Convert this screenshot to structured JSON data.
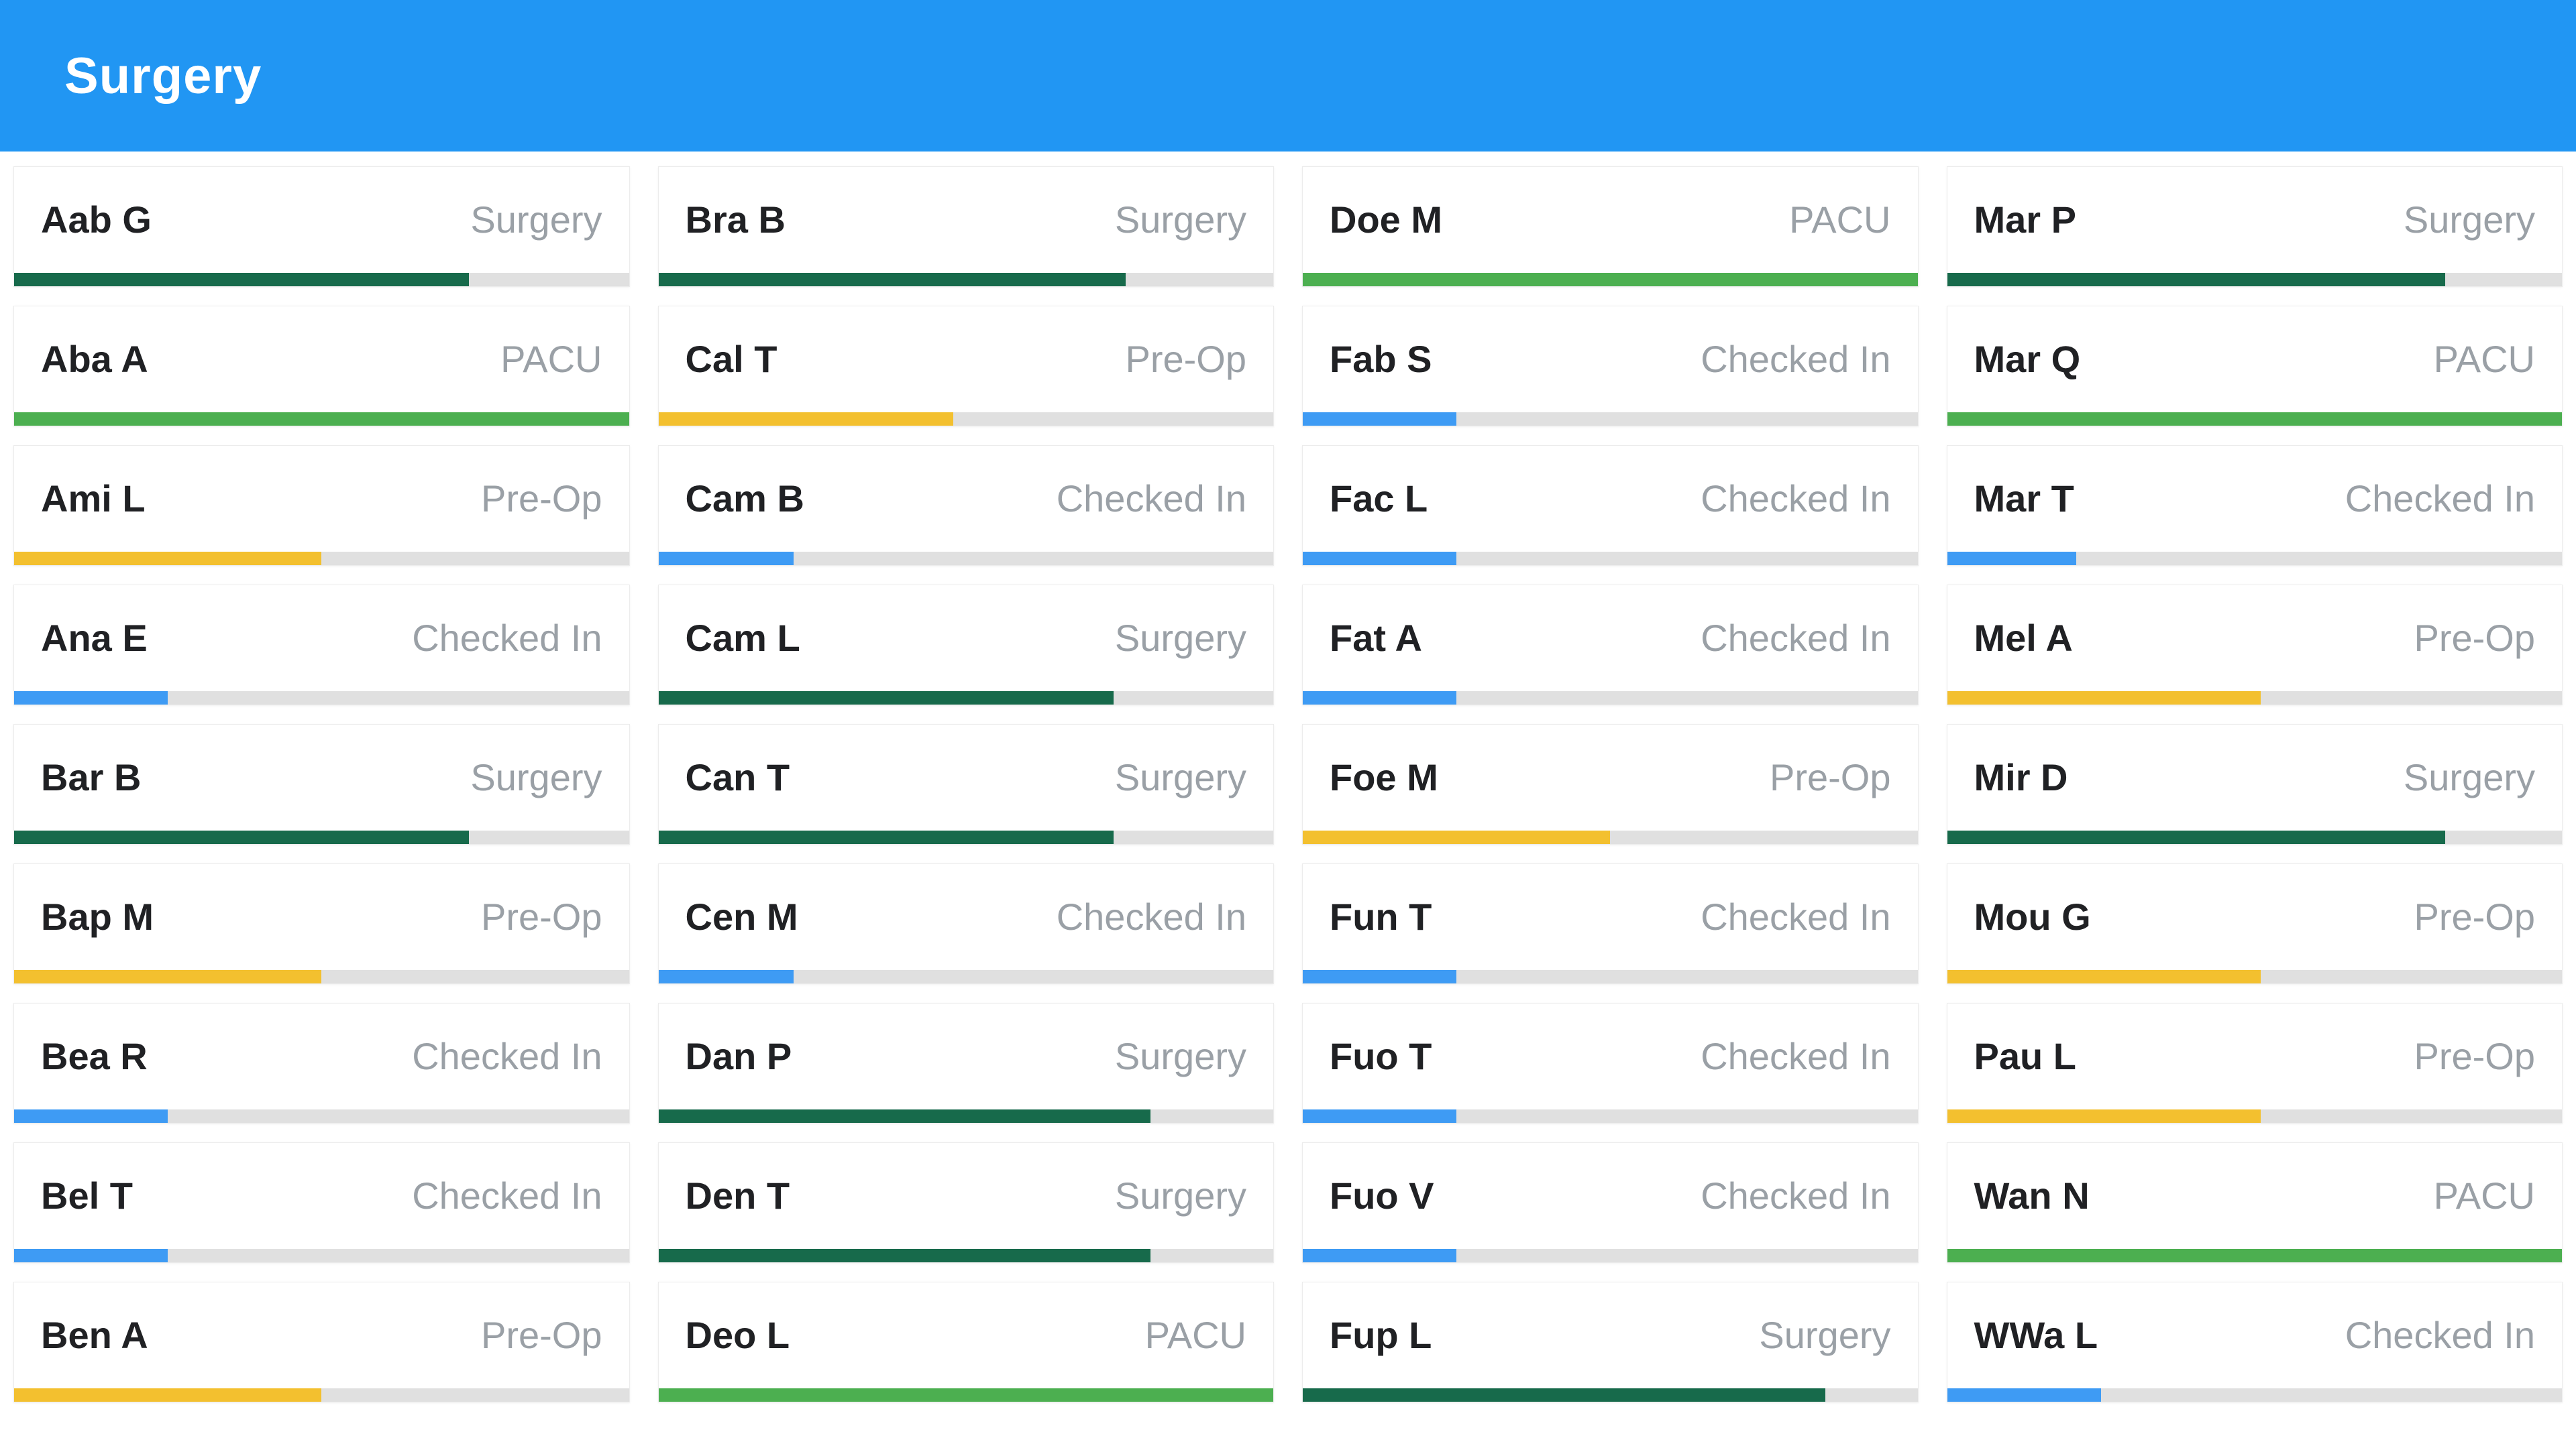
{
  "header": {
    "title": "Surgery",
    "background": "#2196f3"
  },
  "statuses": {
    "Surgery": {
      "color": "#176a4b"
    },
    "PACU": {
      "color": "#4caf50"
    },
    "Pre-Op": {
      "color": "#f3c02f"
    },
    "Checked In": {
      "color": "#3e9bf4"
    }
  },
  "columns": [
    [
      {
        "name": "Aab G",
        "status": "Surgery",
        "progress": 74
      },
      {
        "name": "Aba A",
        "status": "PACU",
        "progress": 100
      },
      {
        "name": "Ami L",
        "status": "Pre-Op",
        "progress": 50
      },
      {
        "name": "Ana E",
        "status": "Checked In",
        "progress": 25
      },
      {
        "name": "Bar B",
        "status": "Surgery",
        "progress": 74
      },
      {
        "name": "Bap M",
        "status": "Pre-Op",
        "progress": 50
      },
      {
        "name": "Bea R",
        "status": "Checked In",
        "progress": 25
      },
      {
        "name": "Bel T",
        "status": "Checked In",
        "progress": 25
      },
      {
        "name": "Ben A",
        "status": "Pre-Op",
        "progress": 50
      }
    ],
    [
      {
        "name": "Bra B",
        "status": "Surgery",
        "progress": 76
      },
      {
        "name": "Cal T",
        "status": "Pre-Op",
        "progress": 48
      },
      {
        "name": "Cam B",
        "status": "Checked In",
        "progress": 22
      },
      {
        "name": "Cam L",
        "status": "Surgery",
        "progress": 74
      },
      {
        "name": "Can T",
        "status": "Surgery",
        "progress": 74
      },
      {
        "name": "Cen M",
        "status": "Checked In",
        "progress": 22
      },
      {
        "name": "Dan P",
        "status": "Surgery",
        "progress": 80
      },
      {
        "name": "Den T",
        "status": "Surgery",
        "progress": 80
      },
      {
        "name": "Deo L",
        "status": "PACU",
        "progress": 100
      }
    ],
    [
      {
        "name": "Doe M",
        "status": "PACU",
        "progress": 100
      },
      {
        "name": "Fab S",
        "status": "Checked In",
        "progress": 25
      },
      {
        "name": "Fac L",
        "status": "Checked In",
        "progress": 25
      },
      {
        "name": "Fat A",
        "status": "Checked In",
        "progress": 25
      },
      {
        "name": "Foe M",
        "status": "Pre-Op",
        "progress": 50
      },
      {
        "name": "Fun T",
        "status": "Checked In",
        "progress": 25
      },
      {
        "name": "Fuo T",
        "status": "Checked In",
        "progress": 25
      },
      {
        "name": "Fuo V",
        "status": "Checked In",
        "progress": 25
      },
      {
        "name": "Fup L",
        "status": "Surgery",
        "progress": 85
      }
    ],
    [
      {
        "name": "Mar P",
        "status": "Surgery",
        "progress": 81
      },
      {
        "name": "Mar Q",
        "status": "PACU",
        "progress": 100
      },
      {
        "name": "Mar T",
        "status": "Checked In",
        "progress": 21
      },
      {
        "name": "Mel A",
        "status": "Pre-Op",
        "progress": 51
      },
      {
        "name": "Mir D",
        "status": "Surgery",
        "progress": 81
      },
      {
        "name": "Mou G",
        "status": "Pre-Op",
        "progress": 51
      },
      {
        "name": "Pau L",
        "status": "Pre-Op",
        "progress": 51
      },
      {
        "name": "Wan N",
        "status": "PACU",
        "progress": 100
      },
      {
        "name": "WWa L",
        "status": "Checked In",
        "progress": 25
      }
    ]
  ]
}
